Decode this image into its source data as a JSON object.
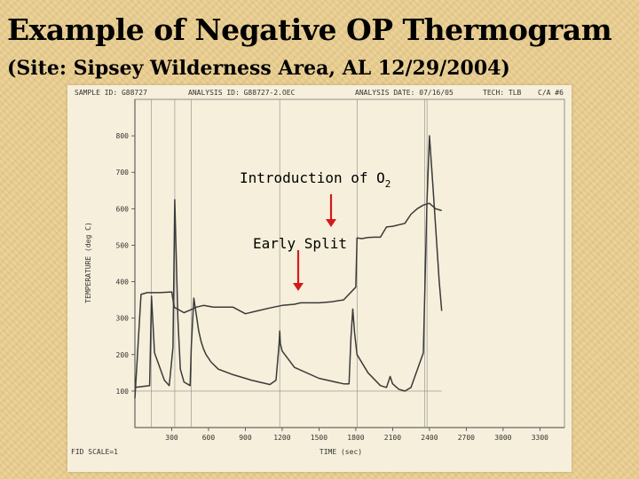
{
  "slide": {
    "title": "Example of Negative OP Thermogram",
    "subtitle": "(Site: Sipsey Wilderness Area, AL 12/29/2004)"
  },
  "header": {
    "sample_id": "SAMPLE ID: G88727",
    "analysis_id": "ANALYSIS ID: G88727-2.OEC",
    "analysis_date": "ANALYSIS DATE: 07/16/05",
    "tech": "TECH: TLB",
    "ca": "C/A #6"
  },
  "footer": {
    "fid_scale": "FID SCALE=1"
  },
  "annotations": {
    "o2_text": "Introduction of O",
    "o2_subscript": "2",
    "split_text": "Early Split"
  },
  "chart_data": {
    "type": "line",
    "title": "",
    "xlabel": "TIME (sec)",
    "ylabel": "TEMPERATURE (deg C)",
    "xlim": [
      0,
      3500
    ],
    "ylim": [
      0,
      900
    ],
    "xticks": [
      300,
      600,
      900,
      1200,
      1500,
      1800,
      2100,
      2400,
      2700,
      3000,
      3300
    ],
    "yticks": [
      100,
      200,
      300,
      400,
      500,
      600,
      700,
      800
    ],
    "grid": false,
    "colors": {
      "trace": "#3a3a3a",
      "arrow": "#d31a1a"
    },
    "series": [
      {
        "role": "temperature",
        "x": [
          0,
          50,
          100,
          200,
          300,
          320,
          400,
          450,
          500,
          560,
          640,
          700,
          800,
          900,
          1000,
          1100,
          1200,
          1300,
          1350,
          1500,
          1600,
          1700,
          1800,
          1810,
          1850,
          1900,
          1950,
          2000,
          2050,
          2100,
          2200,
          2250,
          2300,
          2350,
          2400,
          2450,
          2500
        ],
        "y": [
          80,
          365,
          370,
          370,
          372,
          330,
          315,
          322,
          330,
          335,
          330,
          330,
          330,
          312,
          320,
          328,
          335,
          338,
          342,
          342,
          345,
          350,
          385,
          520,
          518,
          521,
          522,
          522,
          550,
          552,
          560,
          585,
          600,
          610,
          615,
          600,
          595
        ]
      },
      {
        "role": "fid",
        "x": [
          0,
          120,
          135,
          160,
          240,
          280,
          310,
          325,
          350,
          370,
          400,
          450,
          460,
          480,
          520,
          540,
          560,
          580,
          620,
          680,
          800,
          950,
          1100,
          1150,
          1175,
          1180,
          1185,
          1200,
          1300,
          1500,
          1700,
          1745,
          1760,
          1775,
          1790,
          1810,
          1900,
          2000,
          2050,
          2080,
          2100,
          2150,
          2200,
          2250,
          2350,
          2380,
          2400,
          2430,
          2460,
          2480,
          2500
        ],
        "y": [
          110,
          115,
          360,
          205,
          130,
          115,
          220,
          625,
          300,
          160,
          125,
          115,
          225,
          355,
          265,
          235,
          215,
          200,
          180,
          160,
          145,
          130,
          118,
          130,
          230,
          265,
          230,
          210,
          165,
          135,
          120,
          120,
          245,
          325,
          260,
          200,
          150,
          115,
          110,
          140,
          120,
          105,
          100,
          110,
          205,
          620,
          800,
          655,
          500,
          400,
          320
        ]
      }
    ]
  }
}
